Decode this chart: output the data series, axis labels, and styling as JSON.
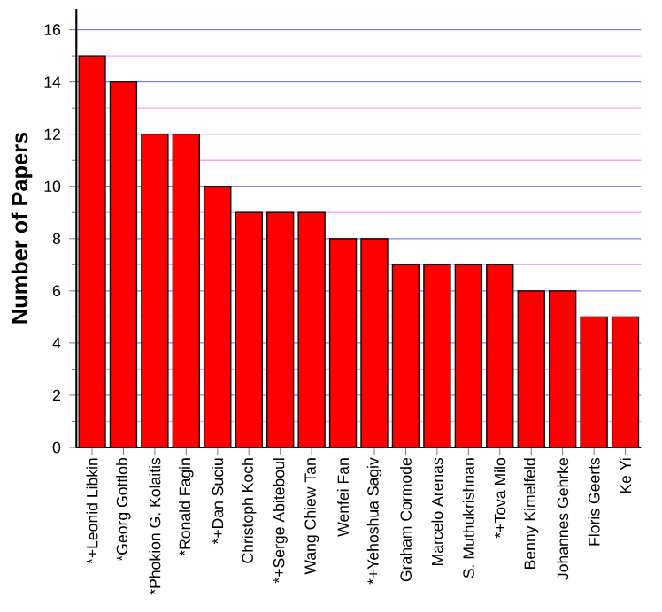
{
  "chart_data": {
    "type": "bar",
    "ylabel": "Number of Papers",
    "categories": [
      "*+Leonid Libkin",
      "*Georg Gottlob",
      "*Phokion G. Kolaitis",
      "*Ronald Fagin",
      "*+Dan Suciu",
      "Christoph Koch",
      "*+Serge Abiteboul",
      "Wang Chiew Tan",
      "Wenfei Fan",
      "*+Yehoshua Sagiv",
      "Graham Cormode",
      "Marcelo Arenas",
      "S. Muthukrishnan",
      "*+Tova Milo",
      "Benny Kimelfeld",
      "Johannes Gehrke",
      "Floris Geerts",
      "Ke Yi"
    ],
    "values": [
      15,
      14,
      12,
      12,
      10,
      9,
      9,
      9,
      8,
      8,
      7,
      7,
      7,
      7,
      6,
      6,
      5,
      5
    ],
    "color": "#ff0000",
    "ylim": [
      0,
      16.8
    ],
    "yticks": [
      0,
      {
        "value": 1,
        "label": null
      },
      2,
      {
        "value": 3,
        "label": null
      },
      4,
      {
        "value": 5,
        "label": null
      },
      6,
      {
        "value": 7,
        "label": null
      },
      8,
      {
        "value": 9,
        "label": null
      },
      10,
      {
        "value": 11,
        "label": null
      },
      12,
      {
        "value": 13,
        "label": null
      },
      14,
      {
        "value": 15,
        "label": null
      },
      16
    ],
    "grid": true
  }
}
